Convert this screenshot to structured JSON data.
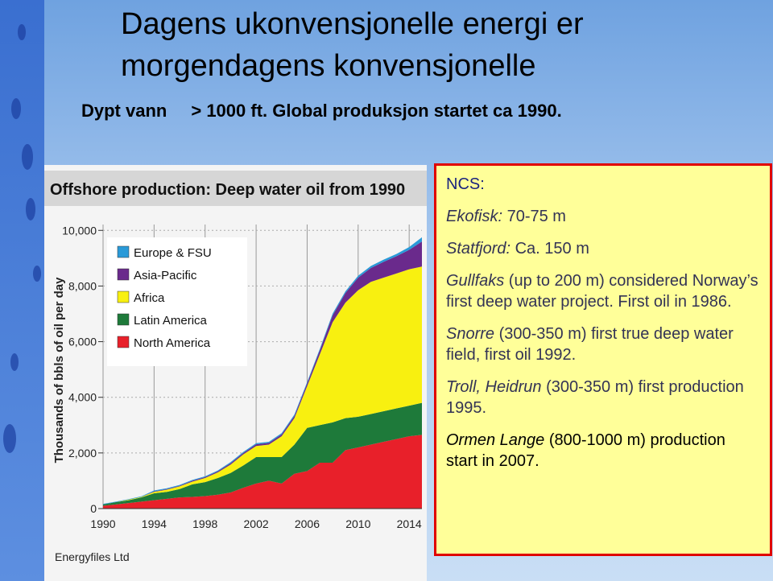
{
  "header": {
    "title_lines": [
      "Dagens ukonvensjonelle energi er",
      "morgendagens konvensjonelle"
    ],
    "subtitle": {
      "term": "Dypt vann",
      "text": "> 1000 ft.  Global produksjon startet ca 1990."
    }
  },
  "chart_data": {
    "type": "stacked-area",
    "title": "Offshore production: Deep water oil from 1990",
    "y_label": "Thousands of bbls of oil per day",
    "source": "Energyfiles Ltd",
    "x": [
      1990,
      1991,
      1992,
      1993,
      1994,
      1995,
      1996,
      1997,
      1998,
      1999,
      2000,
      2001,
      2002,
      2003,
      2004,
      2005,
      2006,
      2007,
      2008,
      2009,
      2010,
      2011,
      2012,
      2013,
      2014,
      2015
    ],
    "series": [
      {
        "name": "North America",
        "color": "#e8202a",
        "values": [
          100,
          150,
          200,
          250,
          300,
          350,
          400,
          420,
          450,
          500,
          580,
          750,
          900,
          1000,
          900,
          1250,
          1350,
          1650,
          1650,
          2100,
          2200,
          2300,
          2400,
          2500,
          2600,
          2650
        ]
      },
      {
        "name": "Latin America",
        "color": "#1e7a3a",
        "values": [
          50,
          80,
          100,
          150,
          250,
          250,
          300,
          450,
          500,
          600,
          700,
          800,
          950,
          850,
          950,
          1050,
          1550,
          1350,
          1450,
          1150,
          1100,
          1100,
          1100,
          1100,
          1100,
          1150
        ]
      },
      {
        "name": "Africa",
        "color": "#f8f010",
        "values": [
          0,
          0,
          20,
          20,
          50,
          80,
          100,
          100,
          150,
          200,
          300,
          400,
          400,
          450,
          750,
          950,
          1500,
          2550,
          3600,
          4150,
          4550,
          4750,
          4800,
          4850,
          4900,
          4900
        ]
      },
      {
        "name": "Asia-Pacific",
        "color": "#6a2a8c",
        "values": [
          0,
          0,
          0,
          0,
          20,
          20,
          20,
          30,
          30,
          40,
          50,
          50,
          60,
          60,
          70,
          80,
          100,
          150,
          250,
          350,
          450,
          500,
          570,
          620,
          700,
          900
        ]
      },
      {
        "name": "Europe & FSU",
        "color": "#2a9ad8",
        "values": [
          20,
          20,
          20,
          20,
          30,
          30,
          30,
          30,
          30,
          30,
          40,
          40,
          40,
          40,
          40,
          50,
          50,
          50,
          60,
          60,
          70,
          70,
          80,
          80,
          100,
          150
        ]
      }
    ],
    "xlim": [
      1990,
      2015
    ],
    "xticks": [
      1990,
      1994,
      1998,
      2002,
      2006,
      2010,
      2014
    ],
    "ylim": [
      0,
      10500
    ],
    "yticks": [
      0,
      {
        "value": 2000,
        "label": "2,000"
      },
      {
        "value": 4000,
        "label": "4,000"
      },
      {
        "value": 6000,
        "label": "6,000"
      },
      {
        "value": 8000,
        "label": "8,000"
      },
      {
        "value": 10000,
        "label": "10,000"
      }
    ],
    "grid": true
  },
  "textbox": {
    "heading": "NCS:",
    "items": [
      {
        "name": "Ekofisk:",
        "text": " 70-75 m"
      },
      {
        "name": "Statfjord:",
        "text": " Ca. 150 m"
      },
      {
        "name": "Gullfaks",
        "text": " (up to 200 m) considered Norway’s first deep water project. First oil in 1986."
      },
      {
        "name": "Snorre",
        "text": " (300-350 m) first true deep water field, first oil 1992."
      },
      {
        "name": "Troll, Heidrun",
        "text": " (300-350 m) first production 1995."
      },
      {
        "name": "Ormen Lange",
        "text": " (800-1000 m) production start in 2007."
      }
    ]
  }
}
